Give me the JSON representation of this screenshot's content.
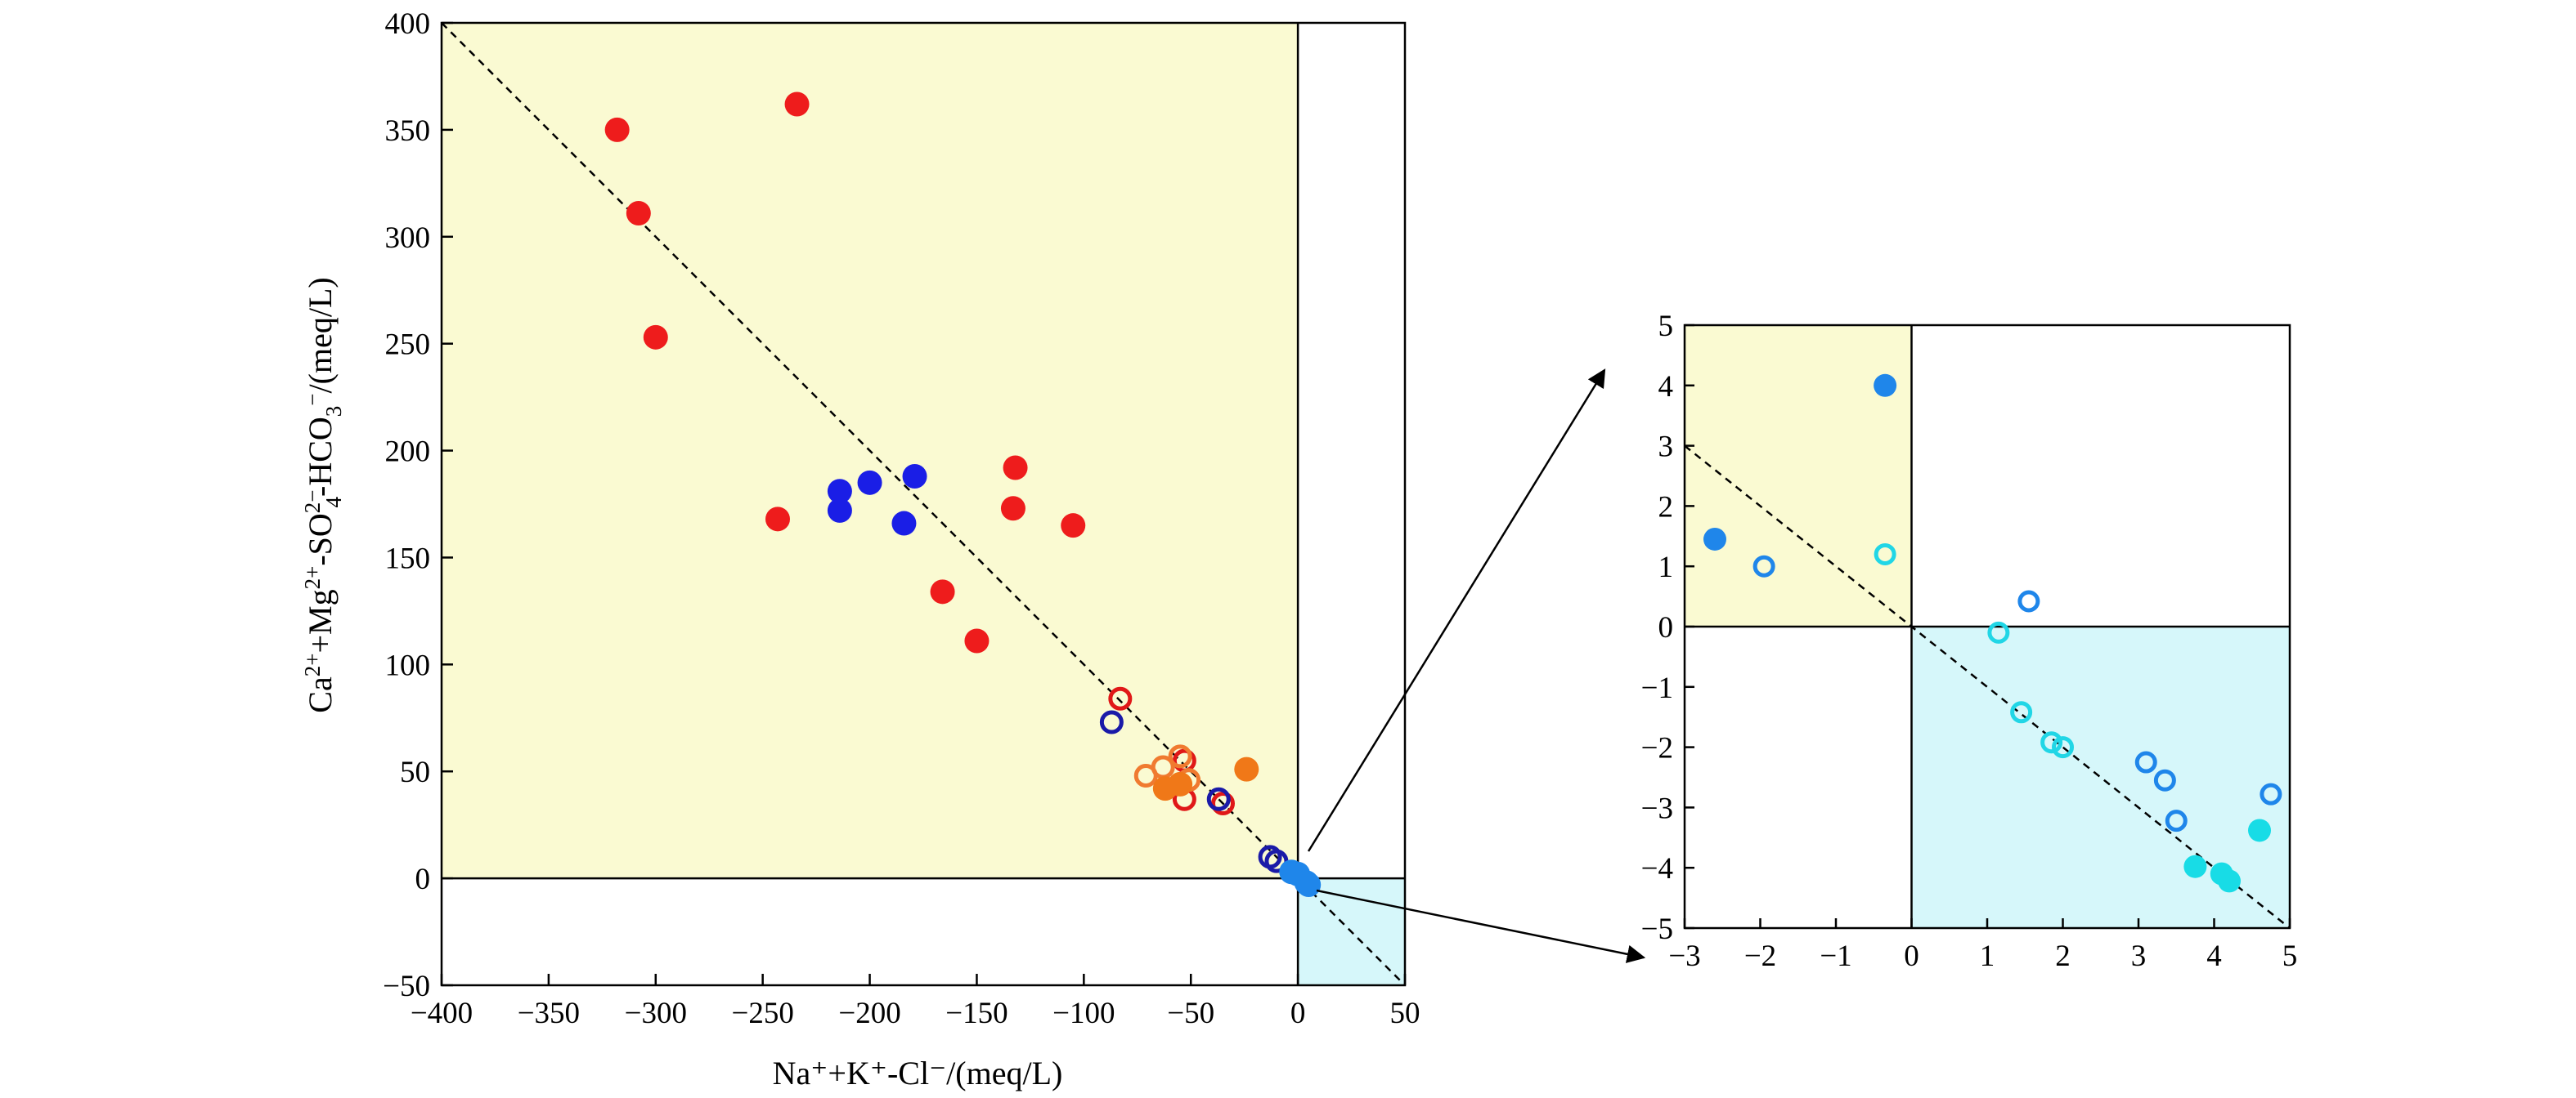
{
  "chart_data": [
    {
      "type": "scatter",
      "xlabel": "Na⁺+K⁺-Cl⁻/(meq/L)",
      "ylabel_parts": [
        "Ca",
        "2+",
        "+Mg",
        "2+",
        "-SO",
        "2−",
        "4",
        "-HCO",
        "3",
        "−",
        "/(meq/L)"
      ],
      "xlim": [
        -400,
        50
      ],
      "ylim": [
        -50,
        400
      ],
      "xticks": [
        -400,
        -350,
        -300,
        -250,
        -200,
        -150,
        -100,
        -50,
        0,
        50
      ],
      "yticks": [
        -50,
        0,
        50,
        100,
        150,
        200,
        250,
        300,
        350,
        400
      ],
      "xtick_labels": [
        "−400",
        "−350",
        "−300",
        "−250",
        "−200",
        "−150",
        "−100",
        "−50",
        "0",
        "50"
      ],
      "ytick_labels": [
        "−50",
        "0",
        "50",
        "100",
        "150",
        "200",
        "250",
        "300",
        "350",
        "400"
      ],
      "reference_line": {
        "slope": -1,
        "intercept": 0,
        "style": "dashed"
      },
      "shaded_quadrants": [
        {
          "region": "x<0,y>0",
          "color": "#fafad2"
        },
        {
          "region": "x>0,y<0",
          "color": "#d6f7fa"
        }
      ],
      "grid": false,
      "series": [
        {
          "marker": "filled",
          "color": "#ee1c1c",
          "points": [
            [
              -318,
              350
            ],
            [
              -308,
              311
            ],
            [
              -300,
              253
            ],
            [
              -234,
              362
            ],
            [
              -243,
              168
            ],
            [
              -166,
              134
            ],
            [
              -150,
              111
            ],
            [
              -132,
              192
            ],
            [
              -133,
              173
            ],
            [
              -105,
              165
            ]
          ]
        },
        {
          "marker": "filled",
          "color": "#1a1ee6",
          "points": [
            [
              -214,
              181
            ],
            [
              -214,
              172
            ],
            [
              -200,
              185
            ],
            [
              -179,
              188
            ],
            [
              -184,
              166
            ]
          ]
        },
        {
          "marker": "open",
          "color": "#e01818",
          "points": [
            [
              -83,
              84
            ],
            [
              -53,
              55
            ],
            [
              -53,
              37
            ],
            [
              -35,
              35
            ]
          ]
        },
        {
          "marker": "open",
          "color": "#1a1aa8",
          "points": [
            [
              -87,
              73
            ],
            [
              -37,
              37
            ],
            [
              -13,
              10
            ],
            [
              -10,
              8
            ]
          ]
        },
        {
          "marker": "open",
          "color": "#f07a30",
          "points": [
            [
              -71,
              48
            ],
            [
              -63,
              52
            ],
            [
              -55,
              57
            ],
            [
              -51,
              46
            ]
          ]
        },
        {
          "marker": "filled",
          "color": "#f07818",
          "points": [
            [
              -62,
              42
            ],
            [
              -55,
              44
            ],
            [
              -24,
              51
            ]
          ]
        },
        {
          "marker": "filled",
          "color": "#1f86ea",
          "points": [
            [
              -3,
              3
            ],
            [
              0,
              2
            ],
            [
              4,
              -2
            ],
            [
              5,
              -3
            ]
          ]
        }
      ]
    },
    {
      "type": "scatter",
      "xlim": [
        -3,
        5
      ],
      "ylim": [
        -5,
        5
      ],
      "xticks": [
        -3,
        -2,
        -1,
        0,
        1,
        2,
        3,
        4,
        5
      ],
      "yticks": [
        -5,
        -4,
        -3,
        -2,
        -1,
        0,
        1,
        2,
        3,
        4,
        5
      ],
      "xtick_labels": [
        "−3",
        "−2",
        "−1",
        "0",
        "1",
        "2",
        "3",
        "4",
        "5"
      ],
      "ytick_labels": [
        "−5",
        "−4",
        "−3",
        "−2",
        "−1",
        "0",
        "1",
        "2",
        "3",
        "4",
        "5"
      ],
      "reference_line": {
        "slope": -1,
        "intercept": 0,
        "style": "dashed"
      },
      "shaded_quadrants": [
        {
          "region": "x<0,y>0",
          "color": "#fafad2"
        },
        {
          "region": "x>0,y<0",
          "color": "#d6f7fa"
        }
      ],
      "grid": false,
      "series": [
        {
          "marker": "filled",
          "color": "#1f86ea",
          "points": [
            [
              -2.6,
              1.45
            ],
            [
              -0.35,
              4.0
            ]
          ]
        },
        {
          "marker": "open",
          "color": "#1f86ea",
          "points": [
            [
              -1.95,
              1.0
            ],
            [
              1.55,
              0.42
            ],
            [
              3.1,
              -2.25
            ],
            [
              3.35,
              -2.55
            ],
            [
              3.5,
              -3.22
            ],
            [
              4.75,
              -2.78
            ]
          ]
        },
        {
          "marker": "open",
          "color": "#21d6e6",
          "points": [
            [
              -0.35,
              1.2
            ],
            [
              1.15,
              -0.1
            ],
            [
              1.45,
              -1.42
            ],
            [
              1.85,
              -1.92
            ],
            [
              2.0,
              -2.0
            ]
          ]
        },
        {
          "marker": "filled",
          "color": "#18dce6",
          "points": [
            [
              3.75,
              -3.98
            ],
            [
              4.1,
              -4.1
            ],
            [
              4.2,
              -4.22
            ],
            [
              4.6,
              -3.38
            ]
          ]
        }
      ]
    }
  ]
}
